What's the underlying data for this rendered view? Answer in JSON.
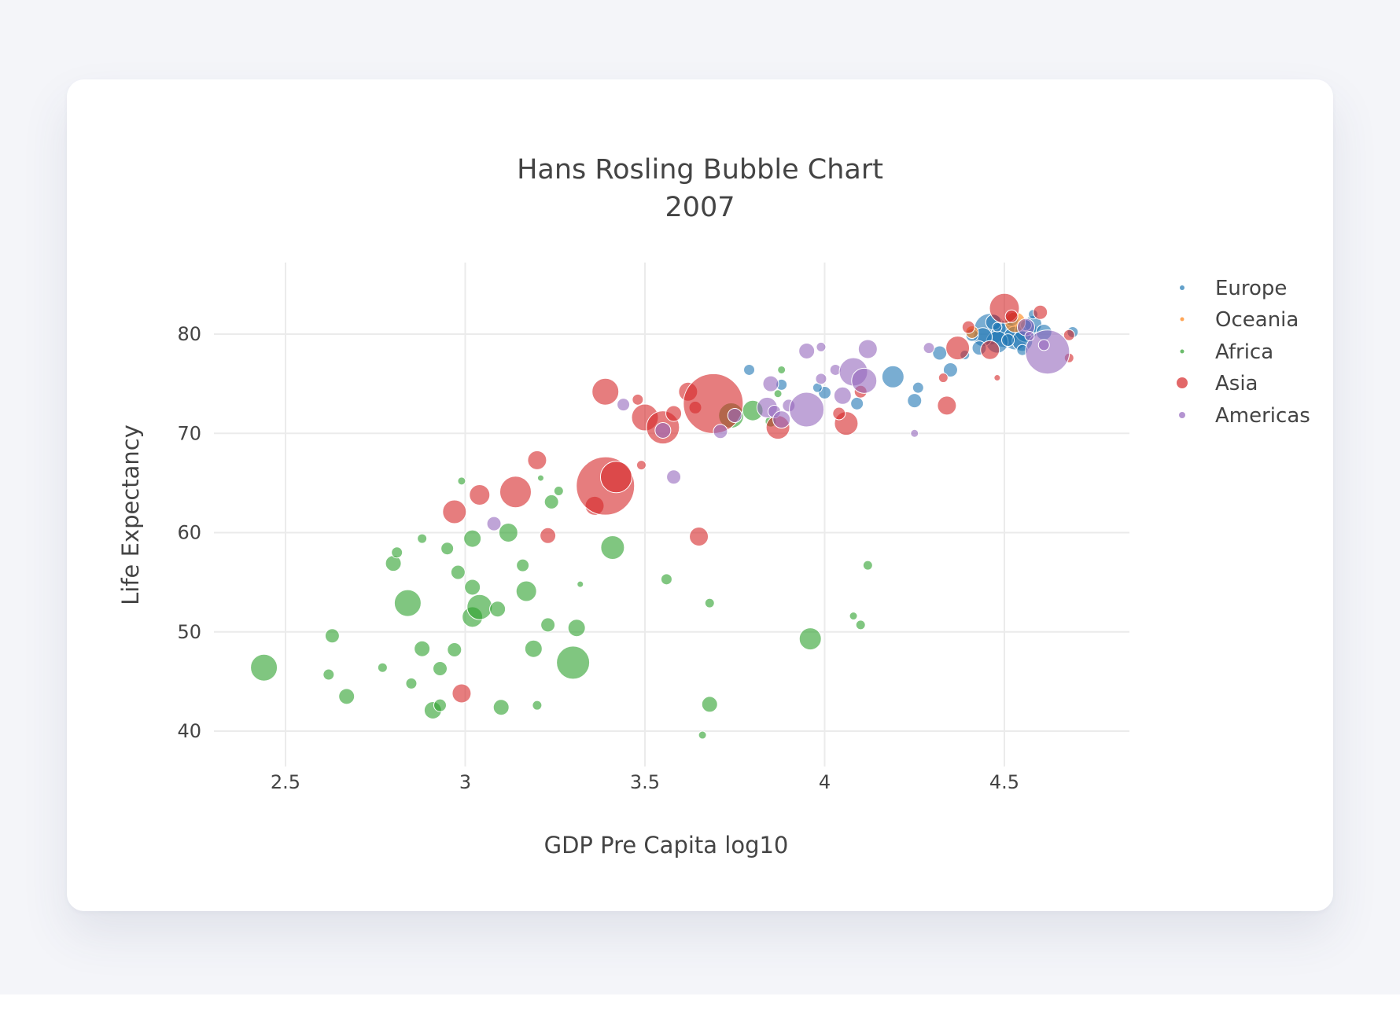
{
  "colors": {
    "Europe": "#1f77b4",
    "Oceania": "#ff7f0e",
    "Africa": "#2ca02c",
    "Asia": "#d62728",
    "Americas": "#9467bd"
  },
  "chart_data": {
    "type": "scatter",
    "title": "Hans Rosling Bubble Chart",
    "subtitle": "2007",
    "xlabel": "GDP Pre Capita log10",
    "ylabel": "Life Expectancy",
    "xlim": [
      2.25,
      4.85
    ],
    "ylim": [
      36,
      87
    ],
    "xticks": [
      2.5,
      3,
      3.5,
      4,
      4.5
    ],
    "xtick_labels": [
      "2.5",
      "3",
      "3.5",
      "4",
      "4.5"
    ],
    "yticks": [
      40,
      50,
      60,
      70,
      80
    ],
    "ytick_labels": [
      "40",
      "50",
      "60",
      "70",
      "80"
    ],
    "grid": true,
    "legend_position": "right",
    "series": [
      {
        "name": "Europe",
        "points": [
          [
            4.46,
            80.5,
            20
          ],
          [
            4.5,
            80.0,
            17
          ],
          [
            4.53,
            79.6,
            15
          ],
          [
            4.48,
            79.2,
            14
          ],
          [
            4.44,
            79.7,
            12
          ],
          [
            4.56,
            80.3,
            14
          ],
          [
            4.55,
            79.3,
            13
          ],
          [
            4.58,
            81.0,
            11
          ],
          [
            4.61,
            80.2,
            10
          ],
          [
            4.52,
            81.5,
            9
          ],
          [
            4.43,
            78.6,
            9
          ],
          [
            4.41,
            79.9,
            8
          ],
          [
            4.47,
            81.2,
            10
          ],
          [
            4.35,
            76.4,
            9
          ],
          [
            4.26,
            74.6,
            7
          ],
          [
            4.19,
            75.7,
            14
          ],
          [
            4.25,
            73.3,
            9
          ],
          [
            4.09,
            73.0,
            8
          ],
          [
            4.0,
            74.1,
            8
          ],
          [
            3.88,
            74.9,
            7
          ],
          [
            3.79,
            76.4,
            7
          ],
          [
            3.98,
            74.6,
            6
          ],
          [
            4.32,
            78.1,
            9
          ],
          [
            4.39,
            77.9,
            6
          ],
          [
            4.69,
            80.2,
            7
          ],
          [
            4.58,
            82.0,
            6
          ],
          [
            4.55,
            78.4,
            7
          ],
          [
            4.56,
            80.9,
            7
          ],
          [
            4.48,
            80.7,
            6
          ],
          [
            4.51,
            79.4,
            8
          ]
        ]
      },
      {
        "name": "Oceania",
        "points": [
          [
            4.53,
            81.2,
            13
          ],
          [
            4.41,
            80.2,
            8
          ]
        ]
      },
      {
        "name": "Africa",
        "points": [
          [
            2.44,
            46.4,
            17
          ],
          [
            2.63,
            49.6,
            9
          ],
          [
            2.62,
            45.7,
            7
          ],
          [
            2.67,
            43.5,
            10
          ],
          [
            2.77,
            46.4,
            6
          ],
          [
            2.8,
            56.9,
            10
          ],
          [
            2.81,
            58.0,
            7
          ],
          [
            2.84,
            52.9,
            17
          ],
          [
            2.85,
            44.8,
            7
          ],
          [
            2.88,
            48.3,
            10
          ],
          [
            2.88,
            59.4,
            6
          ],
          [
            2.91,
            42.1,
            11
          ],
          [
            2.93,
            42.6,
            8
          ],
          [
            2.93,
            46.3,
            9
          ],
          [
            2.95,
            58.4,
            8
          ],
          [
            2.97,
            48.2,
            9
          ],
          [
            2.98,
            56.0,
            9
          ],
          [
            2.99,
            65.2,
            5
          ],
          [
            3.02,
            54.5,
            10
          ],
          [
            3.02,
            59.4,
            11
          ],
          [
            3.02,
            51.5,
            13
          ],
          [
            3.04,
            52.5,
            16
          ],
          [
            3.09,
            52.3,
            10
          ],
          [
            3.1,
            42.4,
            10
          ],
          [
            3.12,
            60.0,
            12
          ],
          [
            3.16,
            56.7,
            8
          ],
          [
            3.17,
            54.1,
            13
          ],
          [
            3.19,
            48.3,
            11
          ],
          [
            3.2,
            42.6,
            6
          ],
          [
            3.21,
            65.5,
            4
          ],
          [
            3.23,
            50.7,
            9
          ],
          [
            3.24,
            63.1,
            9
          ],
          [
            3.26,
            64.2,
            6
          ],
          [
            3.3,
            46.9,
            21
          ],
          [
            3.31,
            50.4,
            11
          ],
          [
            3.32,
            54.8,
            4
          ],
          [
            3.41,
            58.5,
            15
          ],
          [
            3.56,
            55.3,
            7
          ],
          [
            3.68,
            52.9,
            6
          ],
          [
            3.68,
            42.7,
            10
          ],
          [
            3.66,
            39.6,
            5
          ],
          [
            3.74,
            71.8,
            16
          ],
          [
            3.8,
            72.3,
            13
          ],
          [
            3.88,
            76.4,
            5
          ],
          [
            3.96,
            49.3,
            14
          ],
          [
            4.08,
            51.6,
            5
          ],
          [
            4.1,
            50.7,
            6
          ],
          [
            4.12,
            56.7,
            6
          ],
          [
            3.87,
            74.0,
            5
          ],
          [
            3.85,
            71.2,
            7
          ]
        ]
      },
      {
        "name": "Asia",
        "points": [
          [
            2.99,
            43.8,
            12
          ],
          [
            2.97,
            62.1,
            15
          ],
          [
            3.04,
            63.8,
            13
          ],
          [
            3.14,
            64.1,
            20
          ],
          [
            3.2,
            67.3,
            12
          ],
          [
            3.23,
            59.7,
            10
          ],
          [
            3.36,
            62.7,
            12
          ],
          [
            3.39,
            64.7,
            37
          ],
          [
            3.39,
            74.2,
            17
          ],
          [
            3.42,
            65.6,
            20
          ],
          [
            3.48,
            73.4,
            7
          ],
          [
            3.49,
            66.8,
            6
          ],
          [
            3.5,
            71.6,
            17
          ],
          [
            3.55,
            70.6,
            21
          ],
          [
            3.58,
            72.0,
            10
          ],
          [
            3.62,
            74.2,
            12
          ],
          [
            3.64,
            72.6,
            8
          ],
          [
            3.65,
            59.6,
            12
          ],
          [
            3.69,
            73.0,
            38
          ],
          [
            3.87,
            70.6,
            15
          ],
          [
            4.06,
            71.0,
            15
          ],
          [
            4.1,
            74.2,
            8
          ],
          [
            4.04,
            72.0,
            8
          ],
          [
            4.34,
            72.8,
            12
          ],
          [
            4.33,
            75.6,
            6
          ],
          [
            4.37,
            78.6,
            15
          ],
          [
            4.4,
            80.7,
            8
          ],
          [
            4.46,
            78.4,
            12
          ],
          [
            4.48,
            75.6,
            4
          ],
          [
            4.5,
            82.6,
            19
          ],
          [
            4.6,
            82.2,
            9
          ],
          [
            4.68,
            79.9,
            7
          ],
          [
            4.68,
            77.6,
            6
          ],
          [
            4.52,
            81.8,
            8
          ]
        ]
      },
      {
        "name": "Americas",
        "points": [
          [
            3.08,
            60.9,
            9
          ],
          [
            3.58,
            65.6,
            9
          ],
          [
            3.44,
            72.9,
            8
          ],
          [
            3.55,
            70.3,
            10
          ],
          [
            3.71,
            70.2,
            9
          ],
          [
            3.75,
            71.8,
            9
          ],
          [
            3.85,
            75.0,
            10
          ],
          [
            3.84,
            72.6,
            13
          ],
          [
            3.86,
            72.2,
            8
          ],
          [
            3.88,
            71.4,
            11
          ],
          [
            3.9,
            72.8,
            8
          ],
          [
            3.95,
            72.4,
            22
          ],
          [
            3.95,
            78.3,
            10
          ],
          [
            3.99,
            78.7,
            6
          ],
          [
            4.03,
            76.4,
            7
          ],
          [
            4.05,
            73.8,
            11
          ],
          [
            4.08,
            76.2,
            18
          ],
          [
            4.11,
            75.3,
            16
          ],
          [
            4.12,
            78.5,
            12
          ],
          [
            3.99,
            75.5,
            7
          ],
          [
            4.25,
            70.0,
            5
          ],
          [
            4.29,
            78.6,
            7
          ],
          [
            4.56,
            80.7,
            11
          ],
          [
            4.62,
            78.2,
            28
          ],
          [
            4.61,
            78.9,
            7
          ],
          [
            4.57,
            79.8,
            6
          ]
        ]
      }
    ]
  }
}
